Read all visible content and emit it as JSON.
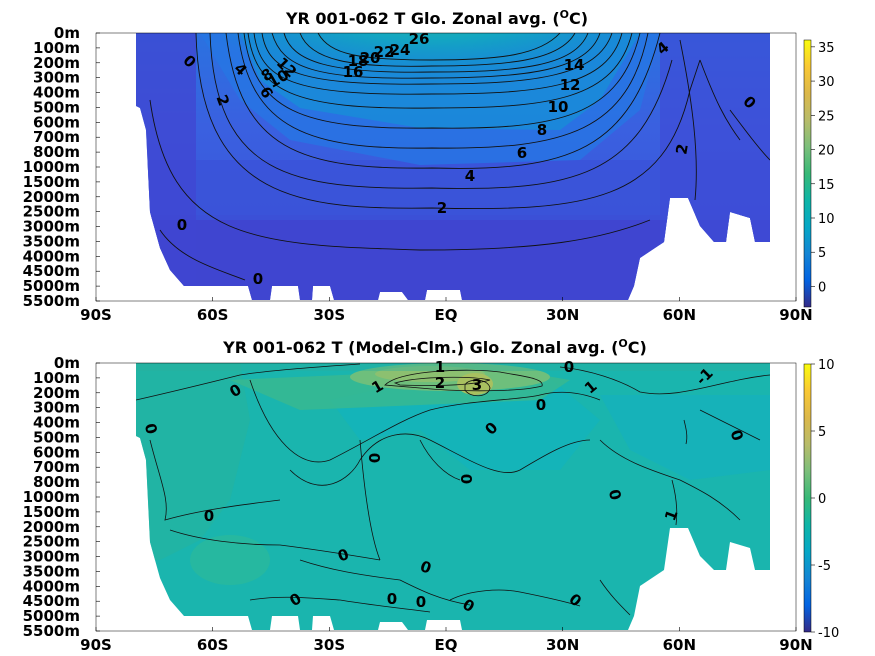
{
  "figure": {
    "panels": [
      {
        "title": "YR 001-062 T Glo. Zonal avg. (",
        "title_super": "O",
        "title_end": "C)",
        "colorbar_ticks": [
          "35",
          "30",
          "25",
          "20",
          "15",
          "10",
          "5",
          "0"
        ]
      },
      {
        "title": "YR 001-062 T (Model-Clm.) Glo. Zonal avg. (",
        "title_super": "O",
        "title_end": "C)",
        "colorbar_ticks": [
          "10",
          "5",
          "0",
          "-5",
          "-10"
        ]
      }
    ]
  },
  "chart_data": [
    {
      "type": "heatmap",
      "title": "YR 001-062 T Glo. Zonal avg. (°C)",
      "x_ticks": [
        "90S",
        "60S",
        "30S",
        "EQ",
        "30N",
        "60N",
        "90N"
      ],
      "y_ticks": [
        "0m",
        "100m",
        "200m",
        "300m",
        "400m",
        "500m",
        "600m",
        "700m",
        "800m",
        "1000m",
        "1500m",
        "2000m",
        "2500m",
        "3000m",
        "3500m",
        "4000m",
        "4500m",
        "5000m",
        "5500m"
      ],
      "xlim": [
        -90,
        90
      ],
      "colorbar_range": [
        -3,
        36
      ],
      "colorbar_ticks": [
        35,
        30,
        25,
        20,
        15,
        10,
        5,
        0
      ],
      "colormap": "parula",
      "contour_labels": [
        "26",
        "24",
        "22",
        "20",
        "18",
        "16",
        "14",
        "12",
        "10",
        "8",
        "6",
        "4",
        "2",
        "0",
        "12",
        "10",
        "8",
        "6",
        "4",
        "0",
        "2",
        "0",
        "4",
        "0",
        "2"
      ]
    },
    {
      "type": "heatmap",
      "title": "YR 001-062 T (Model-Clm.) Glo. Zonal avg. (°C)",
      "x_ticks": [
        "90S",
        "60S",
        "30S",
        "EQ",
        "30N",
        "60N",
        "90N"
      ],
      "y_ticks": [
        "0m",
        "100m",
        "200m",
        "300m",
        "400m",
        "500m",
        "600m",
        "700m",
        "800m",
        "1000m",
        "1500m",
        "2000m",
        "2500m",
        "3000m",
        "3500m",
        "4000m",
        "4500m",
        "5000m",
        "5500m"
      ],
      "xlim": [
        -90,
        90
      ],
      "colorbar_range": [
        -10,
        10
      ],
      "colorbar_ticks": [
        10,
        5,
        0,
        -5,
        -10
      ],
      "colormap": "parula",
      "contour_labels": [
        "1",
        "2",
        "3",
        "0",
        "1",
        "0",
        "0",
        "1",
        "-1",
        "0",
        "0",
        "0",
        "0",
        "0",
        "0",
        "1",
        "0",
        "0",
        "0",
        "0",
        "0",
        "0",
        "0",
        "0"
      ]
    }
  ]
}
